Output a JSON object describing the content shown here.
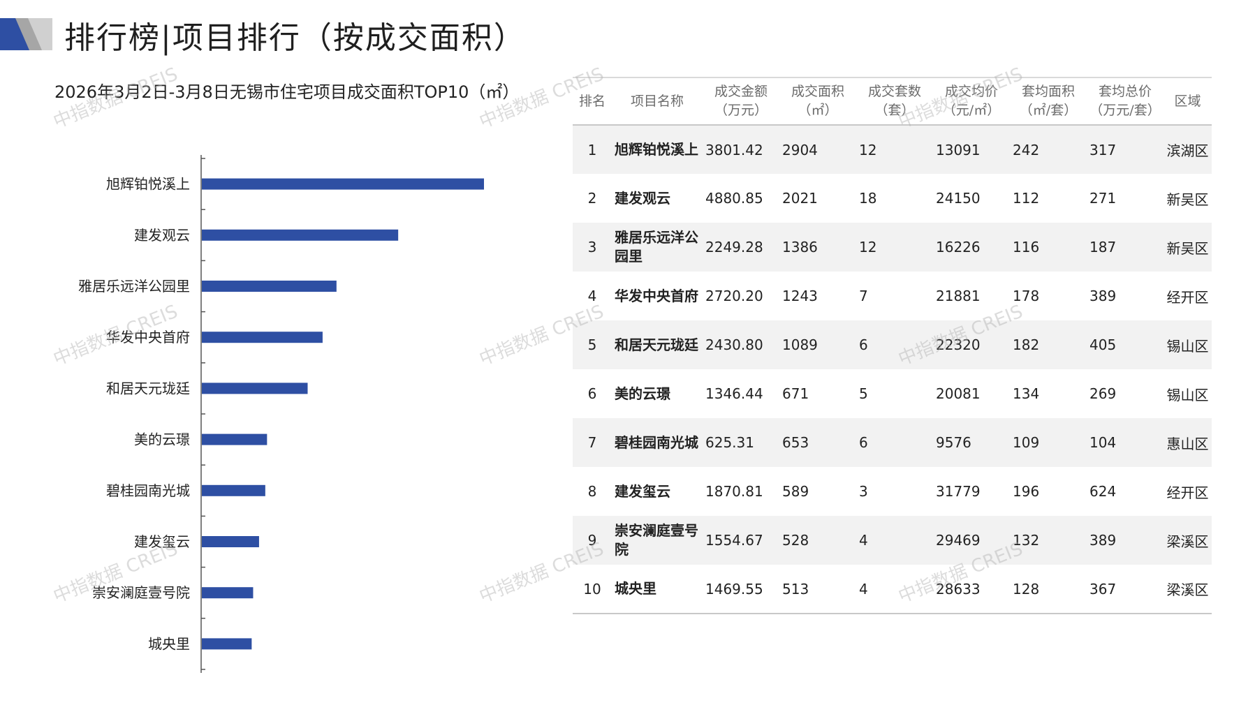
{
  "page_title": "排行榜|项目排行（按成交面积）",
  "chart_title": "2026年3月2日-3月8日无锡市住宅项目成交面积TOP10（㎡）",
  "colors": {
    "bar": "#2e4fa3",
    "deco_blue": "#2e4fa3",
    "deco_gray": "#a6a6a6",
    "row_stripe": "#f2f2f2"
  },
  "chart_data": {
    "type": "bar",
    "orientation": "horizontal",
    "categories": [
      "旭辉铂悦溪上",
      "建发观云",
      "雅居乐远洋公园里",
      "华发中央首府",
      "和居天元珑廷",
      "美的云璟",
      "碧桂园南光城",
      "建发玺云",
      "崇安澜庭壹号院",
      "城央里"
    ],
    "values": [
      2904,
      2021,
      1386,
      1243,
      1089,
      671,
      653,
      589,
      528,
      513
    ],
    "title": "2026年3月2日-3月8日无锡市住宅项目成交面积TOP10（㎡）",
    "xlim": [
      0,
      3000
    ],
    "grid": false,
    "legend": "none"
  },
  "table": {
    "headers": [
      [
        "排名"
      ],
      [
        "项目名称"
      ],
      [
        "成交金额",
        "（万元）"
      ],
      [
        "成交面积",
        "（㎡）"
      ],
      [
        "成交套数",
        "（套）"
      ],
      [
        "成交均价",
        "（元/㎡）"
      ],
      [
        "套均面积",
        "（㎡/套）"
      ],
      [
        "套均总价",
        "（万元/套）"
      ],
      [
        "区域"
      ]
    ],
    "rows": [
      [
        "1",
        "旭辉铂悦溪上",
        "3801.42",
        "2904",
        "12",
        "13091",
        "242",
        "317",
        "滨湖区"
      ],
      [
        "2",
        "建发观云",
        "4880.85",
        "2021",
        "18",
        "24150",
        "112",
        "271",
        "新吴区"
      ],
      [
        "3",
        "雅居乐远洋公园里",
        "2249.28",
        "1386",
        "12",
        "16226",
        "116",
        "187",
        "新吴区"
      ],
      [
        "4",
        "华发中央首府",
        "2720.20",
        "1243",
        "7",
        "21881",
        "178",
        "389",
        "经开区"
      ],
      [
        "5",
        "和居天元珑廷",
        "2430.80",
        "1089",
        "6",
        "22320",
        "182",
        "405",
        "锡山区"
      ],
      [
        "6",
        "美的云璟",
        "1346.44",
        "671",
        "5",
        "20081",
        "134",
        "269",
        "锡山区"
      ],
      [
        "7",
        "碧桂园南光城",
        "625.31",
        "653",
        "6",
        "9576",
        "109",
        "104",
        "惠山区"
      ],
      [
        "8",
        "建发玺云",
        "1870.81",
        "589",
        "3",
        "31779",
        "196",
        "624",
        "经开区"
      ],
      [
        "9",
        "崇安澜庭壹号院",
        "1554.67",
        "528",
        "4",
        "29469",
        "132",
        "389",
        "梁溪区"
      ],
      [
        "10",
        "城央里",
        "1469.55",
        "513",
        "4",
        "28633",
        "128",
        "367",
        "梁溪区"
      ]
    ]
  },
  "watermarks": [
    "中指数据 CREIS",
    "中指数据 CREIS",
    "中指数据 CREIS",
    "中指数据 CREIS",
    "中指数据 CREIS",
    "中指数据 CREIS",
    "中指数据 CREIS",
    "中指数据 CREIS",
    "中指数据 CREIS"
  ]
}
